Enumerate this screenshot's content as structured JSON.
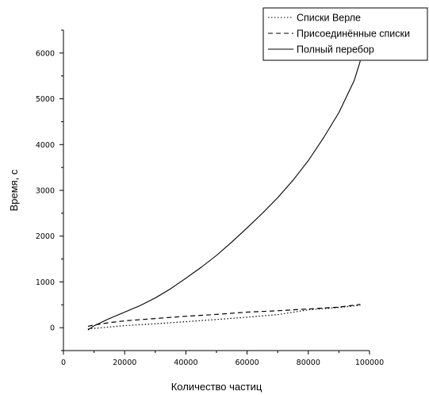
{
  "chart_data": {
    "type": "line",
    "xlabel": "Количество частиц",
    "ylabel": "Время, с",
    "xlim": [
      0,
      100000
    ],
    "ylim": [
      -500,
      6500
    ],
    "x_ticks": [
      0,
      20000,
      40000,
      60000,
      80000,
      100000
    ],
    "y_ticks": [
      0,
      1000,
      2000,
      3000,
      4000,
      5000,
      6000
    ],
    "grid": false,
    "legend_position": "top-right",
    "series": [
      {
        "name": "Списки Верле",
        "style": "dotted",
        "x": [
          8000,
          10000,
          15000,
          20000,
          30000,
          40000,
          50000,
          60000,
          70000,
          80000,
          90000,
          97000
        ],
        "y": [
          -30,
          -15,
          15,
          45,
          85,
          130,
          180,
          230,
          285,
          390,
          440,
          490
        ]
      },
      {
        "name": "Присоединённые списки",
        "style": "dashed",
        "x": [
          8000,
          10000,
          15000,
          20000,
          30000,
          40000,
          50000,
          60000,
          70000,
          80000,
          90000,
          97000
        ],
        "y": [
          30,
          60,
          110,
          150,
          200,
          250,
          290,
          340,
          370,
          410,
          450,
          510
        ]
      },
      {
        "name": "Полный перебор",
        "style": "solid",
        "x": [
          8000,
          10000,
          15000,
          20000,
          25000,
          30000,
          35000,
          40000,
          45000,
          50000,
          55000,
          60000,
          65000,
          70000,
          75000,
          80000,
          85000,
          90000,
          95000,
          97000
        ],
        "y": [
          -50,
          40,
          200,
          340,
          480,
          650,
          850,
          1080,
          1320,
          1580,
          1870,
          2180,
          2500,
          2840,
          3220,
          3650,
          4150,
          4700,
          5400,
          5830
        ]
      }
    ]
  }
}
